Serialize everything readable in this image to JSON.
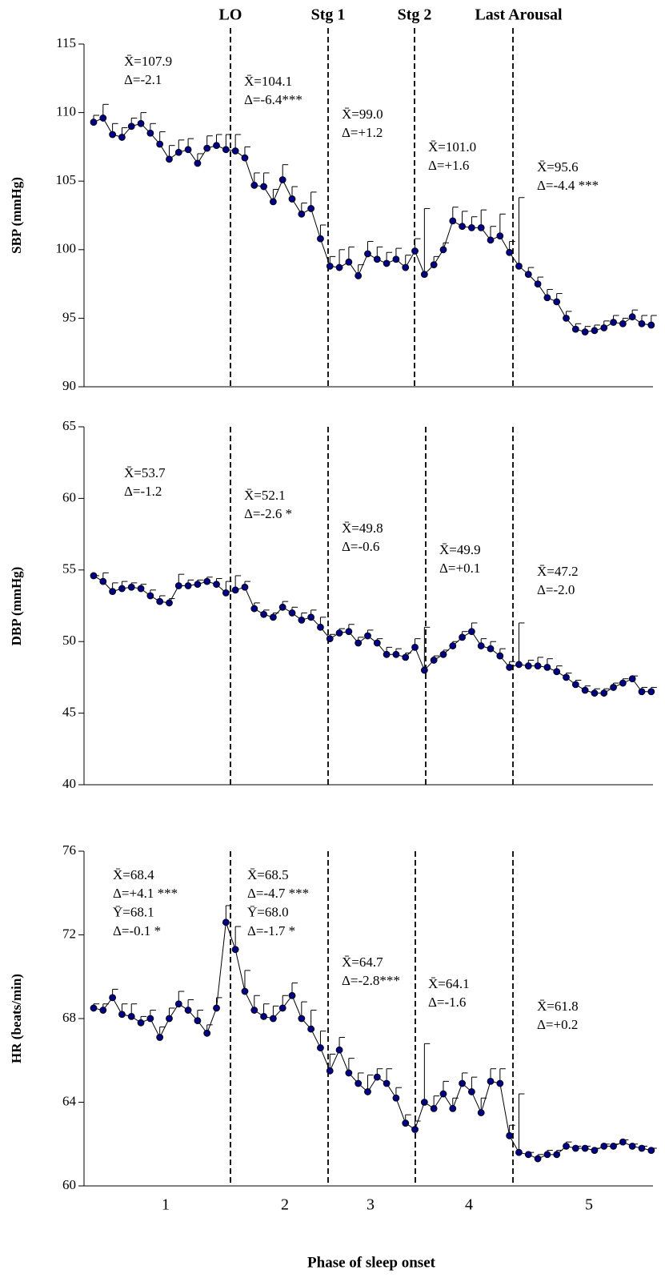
{
  "chart_data": [
    {
      "type": "line",
      "ylabel": "SBP (mmHg)",
      "ylim": [
        90,
        115
      ],
      "yticks": [
        90,
        95,
        100,
        105,
        110,
        115
      ],
      "color": "#000080",
      "stage_labels": [
        "LO",
        "Stg 1",
        "Stg 2",
        "Last Arousal"
      ],
      "values": [
        109.3,
        109.6,
        108.4,
        108.2,
        109.0,
        109.2,
        108.5,
        107.7,
        106.6,
        107.1,
        107.3,
        106.3,
        107.4,
        107.6,
        107.3,
        107.2,
        106.7,
        104.7,
        104.6,
        103.5,
        105.1,
        103.7,
        102.6,
        103.0,
        100.8,
        98.8,
        98.7,
        99.1,
        98.1,
        99.7,
        99.3,
        99.0,
        99.3,
        98.7,
        99.9,
        98.2,
        98.9,
        100.0,
        102.1,
        101.7,
        101.6,
        101.6,
        100.7,
        101.0,
        99.8,
        98.8,
        98.2,
        97.5,
        96.5,
        96.2,
        95.0,
        94.2,
        94.0,
        94.1,
        94.3,
        94.7,
        94.6,
        95.1,
        94.6,
        94.5
      ],
      "errors": [
        0.5,
        1.0,
        0.8,
        0.7,
        0.6,
        0.8,
        0.7,
        0.9,
        1.0,
        0.9,
        0.8,
        0.7,
        0.9,
        0.8,
        1.1,
        1.2,
        0.8,
        0.9,
        1.0,
        0.9,
        1.1,
        0.9,
        0.8,
        1.2,
        1.0,
        0.7,
        1.3,
        1.1,
        0.8,
        0.9,
        0.9,
        0.8,
        0.8,
        0.9,
        0.9,
        4.8,
        0.6,
        0.5,
        1.0,
        1.1,
        0.8,
        1.3,
        1.0,
        1.6,
        0.8,
        5.0,
        0.5,
        0.5,
        0.6,
        0.6,
        0.5,
        0.4,
        0.4,
        0.4,
        0.5,
        0.5,
        0.4,
        0.5,
        0.6,
        0.7
      ],
      "annotations": [
        [
          "X̄=107.9",
          "Δ=-2.1"
        ],
        [
          "X̄=104.1",
          "Δ=-6.4***"
        ],
        [
          "X̄=99.0",
          "Δ=+1.2"
        ],
        [
          "X̄=101.0",
          "Δ=+1.6"
        ],
        [
          "X̄=95.6",
          "Δ=-4.4 ***"
        ]
      ]
    },
    {
      "type": "line",
      "ylabel": "DBP (mmHg)",
      "ylim": [
        40,
        65
      ],
      "yticks": [
        40,
        45,
        50,
        55,
        60,
        65
      ],
      "color": "#000080",
      "values": [
        54.6,
        54.2,
        53.5,
        53.7,
        53.8,
        53.7,
        53.2,
        52.8,
        52.7,
        53.9,
        53.9,
        54.0,
        54.2,
        54.0,
        53.4,
        53.6,
        53.8,
        52.3,
        51.9,
        51.7,
        52.4,
        52.0,
        51.5,
        51.7,
        51.0,
        50.2,
        50.6,
        50.7,
        49.9,
        50.4,
        49.9,
        49.1,
        49.1,
        48.9,
        49.6,
        48.0,
        48.7,
        49.1,
        49.7,
        50.3,
        50.7,
        49.7,
        49.5,
        49.0,
        48.2,
        48.4,
        48.3,
        48.3,
        48.2,
        47.9,
        47.5,
        47.0,
        46.6,
        46.4,
        46.4,
        46.8,
        47.1,
        47.4,
        46.5,
        46.5
      ],
      "errors": [
        0,
        0.6,
        0.6,
        0.5,
        0.3,
        0.3,
        0.4,
        0.4,
        0.3,
        0.8,
        0.4,
        0.3,
        0.3,
        0.4,
        0.8,
        1.0,
        0.4,
        0.4,
        0.3,
        0.3,
        0.4,
        0.4,
        0.5,
        0.5,
        0.7,
        0.3,
        0.3,
        0.5,
        0.4,
        0.4,
        0.3,
        0.5,
        0.4,
        0.3,
        0.6,
        3.0,
        0.3,
        0.3,
        0.3,
        0.4,
        0.6,
        0.5,
        0.5,
        0.5,
        0.4,
        2.9,
        0.4,
        0.6,
        0.6,
        0.4,
        0.3,
        0.3,
        0.3,
        0.3,
        0.3,
        0.3,
        0.3,
        0.2,
        0.3,
        0.3
      ],
      "annotations": [
        [
          "X̄=53.7",
          "Δ=-1.2"
        ],
        [
          "X̄=52.1",
          "Δ=-2.6 *"
        ],
        [
          "X̄=49.8",
          "Δ=-0.6"
        ],
        [
          "X̄=49.9",
          "Δ=+0.1"
        ],
        [
          "X̄=47.2",
          "Δ=-2.0"
        ]
      ]
    },
    {
      "type": "line",
      "ylabel": "HR (beats/min)",
      "ylim": [
        60,
        76
      ],
      "yticks": [
        60,
        64,
        68,
        72,
        76
      ],
      "color": "#000080",
      "xlabel": "Phase of sleep onset",
      "phase_labels": [
        "1",
        "2",
        "3",
        "4",
        "5"
      ],
      "values": [
        68.5,
        68.4,
        69.0,
        68.2,
        68.1,
        67.8,
        68.0,
        67.1,
        68.0,
        68.7,
        68.4,
        67.9,
        67.3,
        68.5,
        72.6,
        71.3,
        69.3,
        68.4,
        68.1,
        68.0,
        68.5,
        69.1,
        68.0,
        67.5,
        66.6,
        65.5,
        66.5,
        65.4,
        64.9,
        64.5,
        65.2,
        64.9,
        64.2,
        63.0,
        62.7,
        64.0,
        63.7,
        64.4,
        63.7,
        64.9,
        64.5,
        63.5,
        65.0,
        64.9,
        62.4,
        61.6,
        61.5,
        61.3,
        61.5,
        61.5,
        61.9,
        61.8,
        61.8,
        61.7,
        61.9,
        61.9,
        62.1,
        61.9,
        61.8,
        61.7
      ],
      "errors": [
        0.2,
        0.3,
        0.4,
        0.5,
        0.6,
        0.3,
        0.4,
        0.5,
        0.5,
        0.6,
        0.5,
        0.5,
        0.4,
        0.5,
        0.8,
        1.1,
        1.0,
        0.7,
        0.6,
        0.6,
        0.6,
        0.6,
        0.8,
        0.9,
        0.8,
        0.8,
        0.6,
        0.7,
        0.5,
        0.8,
        0.4,
        0.7,
        0.5,
        0.4,
        0.4,
        2.8,
        0.6,
        0.6,
        0.5,
        0.5,
        0.7,
        0.7,
        0.6,
        0.7,
        0.5,
        2.8,
        0.1,
        0.2,
        0.2,
        0.2,
        0.2,
        0.1,
        0.1,
        0.1,
        0.1,
        0.1,
        0.1,
        0.1,
        0.1,
        0.1
      ],
      "annotations": [
        [
          "X̄=68.4",
          "Δ=+4.1 ***",
          "Ȳ=68.1",
          "Δ=-0.1 *"
        ],
        [
          "X̄=68.5",
          "Δ=-4.7 ***",
          "Ȳ=68.0",
          "Δ=-1.7 *"
        ],
        [
          "X̄=64.7",
          "Δ=-2.8***"
        ],
        [
          "X̄=64.1",
          "Δ=-1.6"
        ],
        [
          "X̄=61.8",
          "Δ=+0.2"
        ]
      ]
    }
  ]
}
